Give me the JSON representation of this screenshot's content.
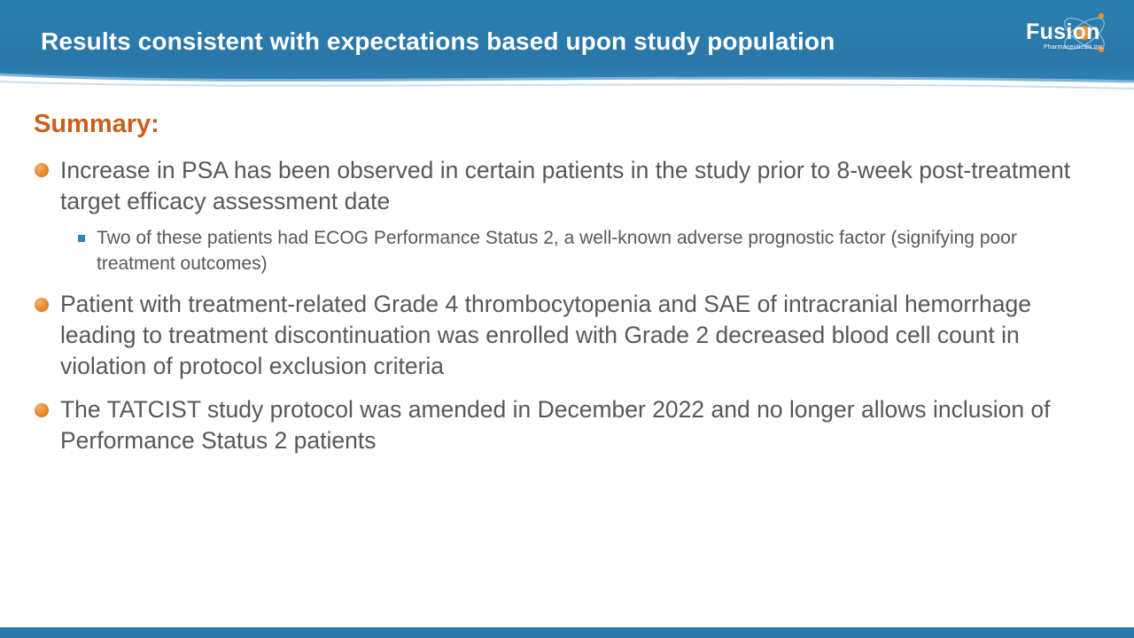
{
  "header": {
    "title": "Results consistent with expectations based upon study population",
    "accent_color": "#2a77a8"
  },
  "logo": {
    "name": "Fusion",
    "tagline": "Pharmaceuticals Inc."
  },
  "content": {
    "summary_heading": "Summary:",
    "heading_color": "#c8601d",
    "bullets": [
      {
        "text": "Increase in PSA has been observed in certain patients in the study prior to 8-week post-treatment target efficacy assessment date",
        "sub_bullets": [
          {
            "text": "Two of these patients had ECOG Performance Status 2, a well-known adverse prognostic factor (signifying poor treatment outcomes)"
          }
        ]
      },
      {
        "text": "Patient with treatment-related Grade 4 thrombocytopenia and SAE of intracranial hemorrhage leading to treatment discontinuation was enrolled with Grade 2 decreased blood cell count in violation of protocol exclusion criteria",
        "sub_bullets": []
      },
      {
        "text": "The TATCIST study protocol was amended in December 2022 and no longer allows inclusion of Performance Status 2 patients",
        "sub_bullets": []
      }
    ]
  }
}
